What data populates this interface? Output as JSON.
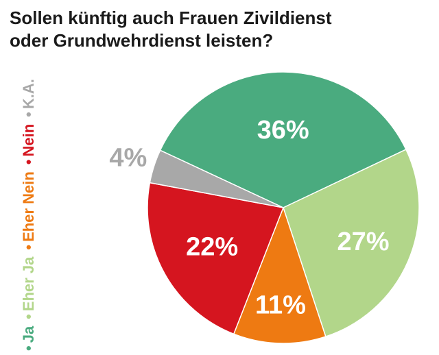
{
  "title_lines": [
    "Sollen künftig auch Frauen Zivildienst",
    "oder Grundwehrdienst leisten?"
  ],
  "chart_data": {
    "type": "pie",
    "title": "Sollen künftig auch Frauen Zivildienst oder Grundwehrdienst leisten?",
    "slices": [
      {
        "label": "Ja",
        "value": 36,
        "display": "36%",
        "color": "#4aab7f",
        "label_color": "#ffffff"
      },
      {
        "label": "Eher Ja",
        "value": 27,
        "display": "27%",
        "color": "#b2d68a",
        "label_color": "#ffffff"
      },
      {
        "label": "Eher Nein",
        "value": 11,
        "display": "11%",
        "color": "#ee7a12",
        "label_color": "#ffffff"
      },
      {
        "label": "Nein",
        "value": 22,
        "display": "22%",
        "color": "#d5151f",
        "label_color": "#ffffff"
      },
      {
        "label": "K.A.",
        "value": 4,
        "display": "4%",
        "color": "#a8a8a8",
        "label_color": "#a8a8a8"
      }
    ],
    "legend": {
      "placement": "left-vertical",
      "entries": [
        {
          "label": "Ja",
          "color": "#4aab7f"
        },
        {
          "label": "Eher Ja",
          "color": "#b2d68a"
        },
        {
          "label": "Eher Nein",
          "color": "#ee7a12"
        },
        {
          "label": "Nein",
          "color": "#d5151f"
        },
        {
          "label": "K.A.",
          "color": "#a8a8a8"
        }
      ],
      "marker": "•"
    }
  }
}
